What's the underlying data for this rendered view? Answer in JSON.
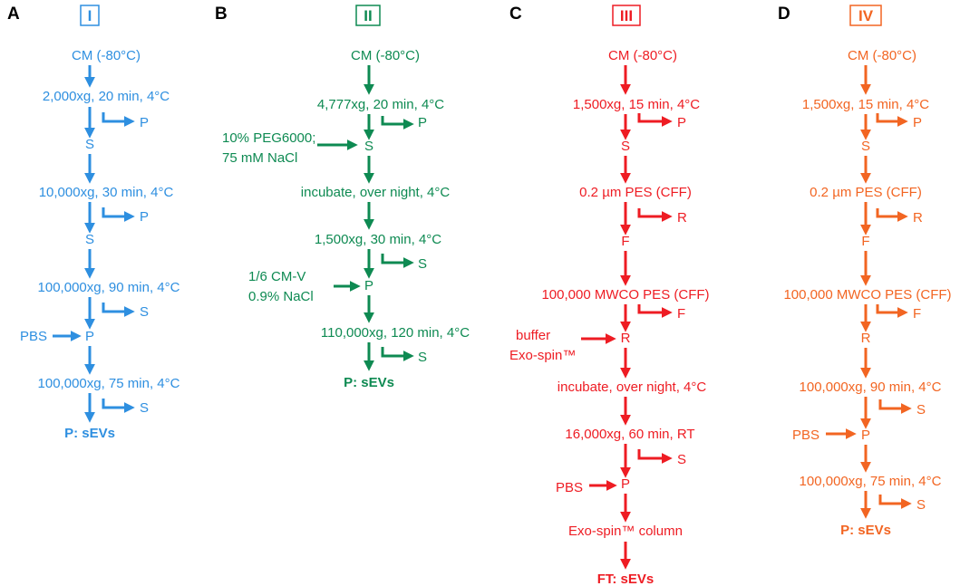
{
  "colors": {
    "I": "#2E8FE0",
    "II": "#0E8A52",
    "III": "#EE1C23",
    "IV": "#F26522"
  },
  "panels": [
    {
      "letter": "A",
      "roman": "I",
      "nodes": [
        "CM (-80°C)",
        "2,000xg, 20 min, 4°C",
        "S",
        "10,000xg, 30 min, 4°C",
        "S",
        "100,000xg, 90 min, 4°C",
        "P",
        "100,000xg, 75 min, 4°C"
      ],
      "branches": [
        "P",
        "P",
        "S",
        "S"
      ],
      "inputs": [
        "PBS"
      ],
      "final": "P: sEVs"
    },
    {
      "letter": "B",
      "roman": "II",
      "nodes": [
        "CM (-80°C)",
        "4,777xg, 20 min, 4°C",
        "S",
        "incubate, over night, 4°C",
        "1,500xg, 30 min, 4°C",
        "P",
        "110,000xg, 120 min, 4°C"
      ],
      "branches": [
        "P",
        "S",
        "S"
      ],
      "inputs": [
        [
          "10% PEG6000;",
          "75 mM NaCl"
        ],
        [
          "1/6 CM-V",
          "0.9% NaCl"
        ]
      ],
      "final": "P: sEVs"
    },
    {
      "letter": "C",
      "roman": "III",
      "nodes": [
        "CM (-80°C)",
        "1,500xg, 15 min, 4°C",
        "S",
        "0.2 µm PES (CFF)",
        "F",
        "100,000 MWCO PES (CFF)",
        "R",
        "incubate, over night, 4°C",
        "16,000xg, 60 min, RT",
        "P",
        "Exo-spin™  column"
      ],
      "branches": [
        "P",
        "R",
        "F",
        "S"
      ],
      "inputs": [
        [
          "buffer",
          "Exo-spin™"
        ],
        "PBS"
      ],
      "final": "FT: sEVs"
    },
    {
      "letter": "D",
      "roman": "IV",
      "nodes": [
        "CM (-80°C)",
        "1,500xg, 15 min, 4°C",
        "S",
        "0.2 µm PES (CFF)",
        "F",
        "100,000 MWCO PES (CFF)",
        "R",
        "100,000xg, 90 min, 4°C",
        "P",
        "100,000xg, 75 min, 4°C"
      ],
      "branches": [
        "P",
        "R",
        "F",
        "S",
        "S"
      ],
      "inputs": [
        "PBS"
      ],
      "final": "P: sEVs"
    }
  ]
}
